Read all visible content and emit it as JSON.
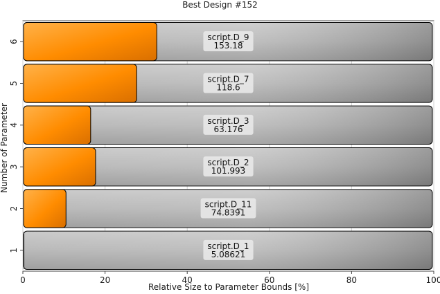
{
  "chart_data": {
    "type": "bar",
    "orientation": "horizontal",
    "title": "Best Design #152",
    "xlabel": "Relative Size to Parameter Bounds [%]",
    "ylabel": "Number of Parameter",
    "xlim": [
      0,
      100
    ],
    "x_ticks": [
      "0",
      "20",
      "40",
      "60",
      "80",
      "100"
    ],
    "grid": true,
    "bars": [
      {
        "number": "1",
        "name": "script.D_1",
        "value_label": "5.08621",
        "relative_percent": 0
      },
      {
        "number": "2",
        "name": "script.D_11",
        "value_label": "74.8391",
        "relative_percent": 10.5
      },
      {
        "number": "3",
        "name": "script.D_2",
        "value_label": "101.993",
        "relative_percent": 17.7
      },
      {
        "number": "4",
        "name": "script.D_3",
        "value_label": "63.176",
        "relative_percent": 16.5
      },
      {
        "number": "5",
        "name": "script.D_7",
        "value_label": "118.6",
        "relative_percent": 27.7
      },
      {
        "number": "6",
        "name": "script.D_9",
        "value_label": "153.18",
        "relative_percent": 32.6
      }
    ],
    "colors": {
      "fill": "#ff8c00",
      "fill_light": "#ffb24a",
      "track": "#b4b4b4",
      "track_dark": "#8a8a8a",
      "border": "#000000",
      "label_box": "#e6e6e6"
    }
  }
}
